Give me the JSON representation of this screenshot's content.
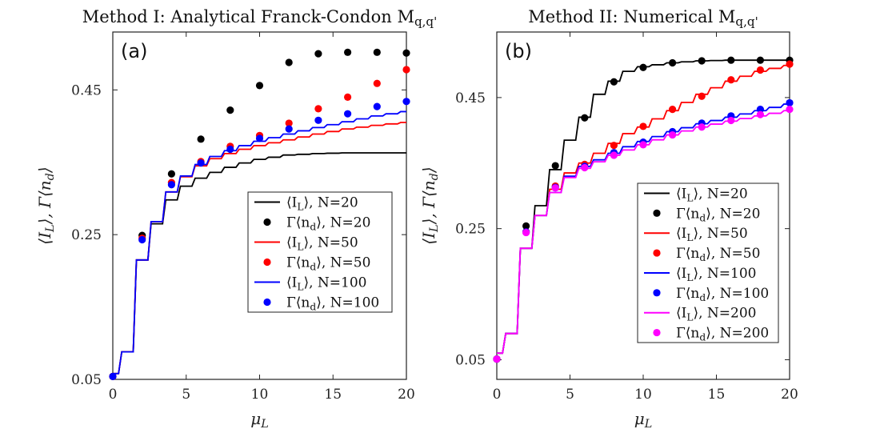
{
  "chart_data": [
    {
      "type": "line",
      "panel_label": "(a)",
      "title": "Method I: Analytical Franck-Condon M_{q,q'}",
      "xlabel": "μ_L",
      "ylabel": "⟨I_L⟩, Γ⟨n_d⟩",
      "xlim": [
        0,
        20
      ],
      "ylim": [
        0.05,
        0.53
      ],
      "xticks": [
        0,
        5,
        10,
        15,
        20
      ],
      "yticks": [
        0.05,
        0.25,
        0.45
      ],
      "ytick_labels": [
        "0.05",
        "0.25",
        "0.45"
      ],
      "legend_position": "lower-right",
      "series": [
        {
          "name": "⟨I_L⟩, N=20",
          "kind": "line",
          "color": "#000000",
          "x": [
            0,
            1,
            2,
            3,
            4,
            5,
            6,
            7,
            8,
            9,
            10,
            12,
            14,
            16,
            18,
            20
          ],
          "y": [
            0.058,
            0.088,
            0.215,
            0.265,
            0.298,
            0.317,
            0.328,
            0.336,
            0.343,
            0.349,
            0.354,
            0.36,
            0.362,
            0.363,
            0.363,
            0.363
          ]
        },
        {
          "name": "Γ⟨n_d⟩, N=20",
          "kind": "scatter",
          "color": "#000000",
          "x": [
            0,
            2,
            4,
            6,
            8,
            10,
            12,
            14,
            16,
            18,
            20
          ],
          "y": [
            0.054,
            0.249,
            0.334,
            0.382,
            0.422,
            0.456,
            0.488,
            0.5,
            0.502,
            0.502,
            0.501
          ]
        },
        {
          "name": "⟨I_L⟩, N=50",
          "kind": "line",
          "color": "#ff0000",
          "x": [
            0,
            1,
            2,
            3,
            4,
            5,
            6,
            7,
            8,
            9,
            10,
            12,
            14,
            16,
            18,
            20
          ],
          "y": [
            0.058,
            0.088,
            0.215,
            0.268,
            0.309,
            0.33,
            0.345,
            0.355,
            0.362,
            0.368,
            0.373,
            0.381,
            0.389,
            0.396,
            0.401,
            0.405
          ]
        },
        {
          "name": "Γ⟨n_d⟩, N=50",
          "kind": "scatter",
          "color": "#ff0000",
          "x": [
            0,
            2,
            4,
            6,
            8,
            10,
            12,
            14,
            16,
            18,
            20
          ],
          "y": [
            0.054,
            0.245,
            0.322,
            0.351,
            0.372,
            0.387,
            0.404,
            0.424,
            0.44,
            0.459,
            0.478
          ]
        },
        {
          "name": "⟨I_L⟩, N=100",
          "kind": "line",
          "color": "#0000ff",
          "x": [
            0,
            1,
            2,
            3,
            4,
            5,
            6,
            7,
            8,
            9,
            10,
            12,
            14,
            16,
            18,
            20
          ],
          "y": [
            0.058,
            0.088,
            0.215,
            0.268,
            0.309,
            0.331,
            0.347,
            0.358,
            0.366,
            0.373,
            0.379,
            0.389,
            0.398,
            0.406,
            0.414,
            0.42
          ]
        },
        {
          "name": "Γ⟨n_d⟩, N=100",
          "kind": "scatter",
          "color": "#0000ff",
          "x": [
            0,
            2,
            4,
            6,
            8,
            10,
            12,
            14,
            16,
            18,
            20
          ],
          "y": [
            0.054,
            0.243,
            0.319,
            0.349,
            0.368,
            0.383,
            0.396,
            0.408,
            0.417,
            0.427,
            0.434
          ]
        }
      ]
    },
    {
      "type": "line",
      "panel_label": "(b)",
      "title": "Method II: Numerical M_{q,q'}",
      "xlabel": "μ_L",
      "ylabel": "⟨I_L⟩, Γ⟨n_d⟩",
      "xlim": [
        0,
        20
      ],
      "ylim": [
        0.02,
        0.55
      ],
      "xticks": [
        0,
        5,
        10,
        15,
        20
      ],
      "yticks": [
        0.05,
        0.25,
        0.45
      ],
      "ytick_labels": [
        "0.05",
        "0.25",
        "0.45"
      ],
      "legend_position": "lower-right",
      "series": [
        {
          "name": "⟨I_L⟩, N=20",
          "kind": "line",
          "color": "#000000",
          "x": [
            0,
            1,
            2,
            3,
            4,
            5,
            6,
            7,
            8,
            9,
            10,
            12,
            14,
            16,
            18,
            20
          ],
          "y": [
            0.06,
            0.09,
            0.22,
            0.285,
            0.34,
            0.385,
            0.42,
            0.455,
            0.475,
            0.49,
            0.497,
            0.503,
            0.506,
            0.507,
            0.507,
            0.507
          ]
        },
        {
          "name": "Γ⟨n_d⟩, N=20",
          "kind": "scatter",
          "color": "#000000",
          "x": [
            0,
            2,
            4,
            6,
            8,
            10,
            12,
            14,
            16,
            18,
            20
          ],
          "y": [
            0.051,
            0.254,
            0.346,
            0.419,
            0.474,
            0.496,
            0.503,
            0.506,
            0.507,
            0.507,
            0.507
          ]
        },
        {
          "name": "⟨I_L⟩, N=50",
          "kind": "line",
          "color": "#ff0000",
          "x": [
            0,
            1,
            2,
            3,
            4,
            5,
            6,
            7,
            8,
            9,
            10,
            12,
            14,
            16,
            18,
            20
          ],
          "y": [
            0.06,
            0.09,
            0.22,
            0.27,
            0.31,
            0.335,
            0.35,
            0.365,
            0.38,
            0.395,
            0.405,
            0.43,
            0.455,
            0.475,
            0.49,
            0.499
          ]
        },
        {
          "name": "Γ⟨n_d⟩, N=50",
          "kind": "scatter",
          "color": "#ff0000",
          "x": [
            0,
            2,
            4,
            6,
            8,
            10,
            12,
            14,
            16,
            18,
            20
          ],
          "y": [
            0.051,
            0.245,
            0.315,
            0.348,
            0.377,
            0.406,
            0.432,
            0.452,
            0.477,
            0.492,
            0.501
          ]
        },
        {
          "name": "⟨I_L⟩, N=100",
          "kind": "line",
          "color": "#0000ff",
          "x": [
            0,
            1,
            2,
            3,
            4,
            5,
            6,
            7,
            8,
            9,
            10,
            12,
            14,
            16,
            18,
            20
          ],
          "y": [
            0.06,
            0.09,
            0.22,
            0.27,
            0.305,
            0.33,
            0.345,
            0.355,
            0.365,
            0.375,
            0.383,
            0.398,
            0.41,
            0.42,
            0.43,
            0.44
          ]
        },
        {
          "name": "Γ⟨n_d⟩, N=100",
          "kind": "scatter",
          "color": "#0000ff",
          "x": [
            0,
            2,
            4,
            6,
            8,
            10,
            12,
            14,
            16,
            18,
            20
          ],
          "y": [
            0.051,
            0.245,
            0.313,
            0.345,
            0.366,
            0.382,
            0.398,
            0.411,
            0.422,
            0.432,
            0.442
          ]
        },
        {
          "name": "⟨I_L⟩, N=200",
          "kind": "line",
          "color": "#ff00ff",
          "x": [
            0,
            1,
            2,
            3,
            4,
            5,
            6,
            7,
            8,
            9,
            10,
            12,
            14,
            16,
            18,
            20
          ],
          "y": [
            0.06,
            0.09,
            0.22,
            0.27,
            0.305,
            0.328,
            0.342,
            0.352,
            0.362,
            0.37,
            0.378,
            0.393,
            0.405,
            0.414,
            0.422,
            0.43
          ]
        },
        {
          "name": "Γ⟨n_d⟩, N=200",
          "kind": "scatter",
          "color": "#ff00ff",
          "x": [
            0,
            2,
            4,
            6,
            8,
            10,
            12,
            14,
            16,
            18,
            20
          ],
          "y": [
            0.051,
            0.244,
            0.312,
            0.343,
            0.362,
            0.378,
            0.393,
            0.405,
            0.415,
            0.424,
            0.432
          ]
        }
      ]
    }
  ]
}
